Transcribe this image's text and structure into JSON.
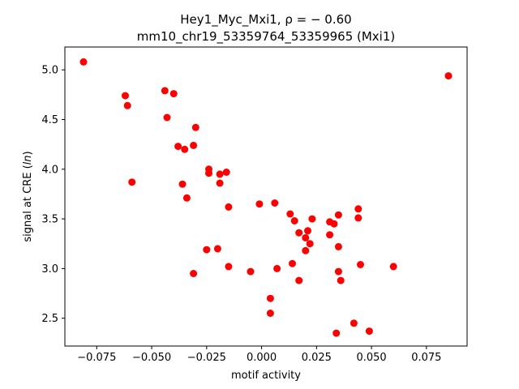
{
  "chart_data": {
    "type": "scatter",
    "title_line1": "Hey1_Myc_Mxi1, ρ = − 0.60",
    "title_line2": "mm10_chr19_53359764_53359965 (Mxi1)",
    "xlabel": "motif activity",
    "ylabel_prefix": "signal at CRE (",
    "ylabel_italic": "ln",
    "ylabel_suffix": ")",
    "xlim": [
      -0.0895,
      0.0935
    ],
    "ylim": [
      2.22,
      5.23
    ],
    "grid": false,
    "marker_color": "#ff0000",
    "x_ticks": [
      -0.075,
      -0.05,
      -0.025,
      0.0,
      0.025,
      0.05,
      0.075
    ],
    "x_tick_labels": [
      "−0.075",
      "−0.050",
      "−0.025",
      "0.000",
      "0.025",
      "0.050",
      "0.075"
    ],
    "y_ticks": [
      2.5,
      3.0,
      3.5,
      4.0,
      4.5,
      5.0
    ],
    "y_tick_labels": [
      "2.5",
      "3.0",
      "3.5",
      "4.0",
      "4.5",
      "5.0"
    ],
    "points": [
      {
        "x": -0.081,
        "y": 5.08
      },
      {
        "x": -0.062,
        "y": 4.74
      },
      {
        "x": -0.061,
        "y": 4.64
      },
      {
        "x": -0.059,
        "y": 3.87
      },
      {
        "x": -0.044,
        "y": 4.79
      },
      {
        "x": -0.043,
        "y": 4.52
      },
      {
        "x": -0.04,
        "y": 4.76
      },
      {
        "x": -0.038,
        "y": 4.23
      },
      {
        "x": -0.036,
        "y": 3.85
      },
      {
        "x": -0.035,
        "y": 4.2
      },
      {
        "x": -0.034,
        "y": 3.71
      },
      {
        "x": -0.031,
        "y": 4.24
      },
      {
        "x": -0.031,
        "y": 2.95
      },
      {
        "x": -0.03,
        "y": 4.42
      },
      {
        "x": -0.025,
        "y": 3.19
      },
      {
        "x": -0.024,
        "y": 4.0
      },
      {
        "x": -0.024,
        "y": 3.96
      },
      {
        "x": -0.02,
        "y": 3.2
      },
      {
        "x": -0.019,
        "y": 3.95
      },
      {
        "x": -0.019,
        "y": 3.86
      },
      {
        "x": -0.016,
        "y": 3.97
      },
      {
        "x": -0.015,
        "y": 3.02
      },
      {
        "x": -0.015,
        "y": 3.62
      },
      {
        "x": -0.005,
        "y": 2.97
      },
      {
        "x": -0.001,
        "y": 3.65
      },
      {
        "x": 0.004,
        "y": 2.7
      },
      {
        "x": 0.004,
        "y": 2.55
      },
      {
        "x": 0.006,
        "y": 3.66
      },
      {
        "x": 0.007,
        "y": 3.0
      },
      {
        "x": 0.013,
        "y": 3.55
      },
      {
        "x": 0.014,
        "y": 3.05
      },
      {
        "x": 0.015,
        "y": 3.48
      },
      {
        "x": 0.017,
        "y": 3.36
      },
      {
        "x": 0.017,
        "y": 2.88
      },
      {
        "x": 0.02,
        "y": 3.31
      },
      {
        "x": 0.02,
        "y": 3.18
      },
      {
        "x": 0.021,
        "y": 3.38
      },
      {
        "x": 0.022,
        "y": 3.25
      },
      {
        "x": 0.023,
        "y": 3.5
      },
      {
        "x": 0.031,
        "y": 3.47
      },
      {
        "x": 0.031,
        "y": 3.34
      },
      {
        "x": 0.033,
        "y": 3.45
      },
      {
        "x": 0.034,
        "y": 2.35
      },
      {
        "x": 0.035,
        "y": 3.54
      },
      {
        "x": 0.035,
        "y": 3.22
      },
      {
        "x": 0.035,
        "y": 2.97
      },
      {
        "x": 0.036,
        "y": 2.88
      },
      {
        "x": 0.042,
        "y": 2.45
      },
      {
        "x": 0.044,
        "y": 3.6
      },
      {
        "x": 0.044,
        "y": 3.51
      },
      {
        "x": 0.045,
        "y": 3.04
      },
      {
        "x": 0.049,
        "y": 2.37
      },
      {
        "x": 0.06,
        "y": 3.02
      },
      {
        "x": 0.085,
        "y": 4.94
      }
    ]
  }
}
